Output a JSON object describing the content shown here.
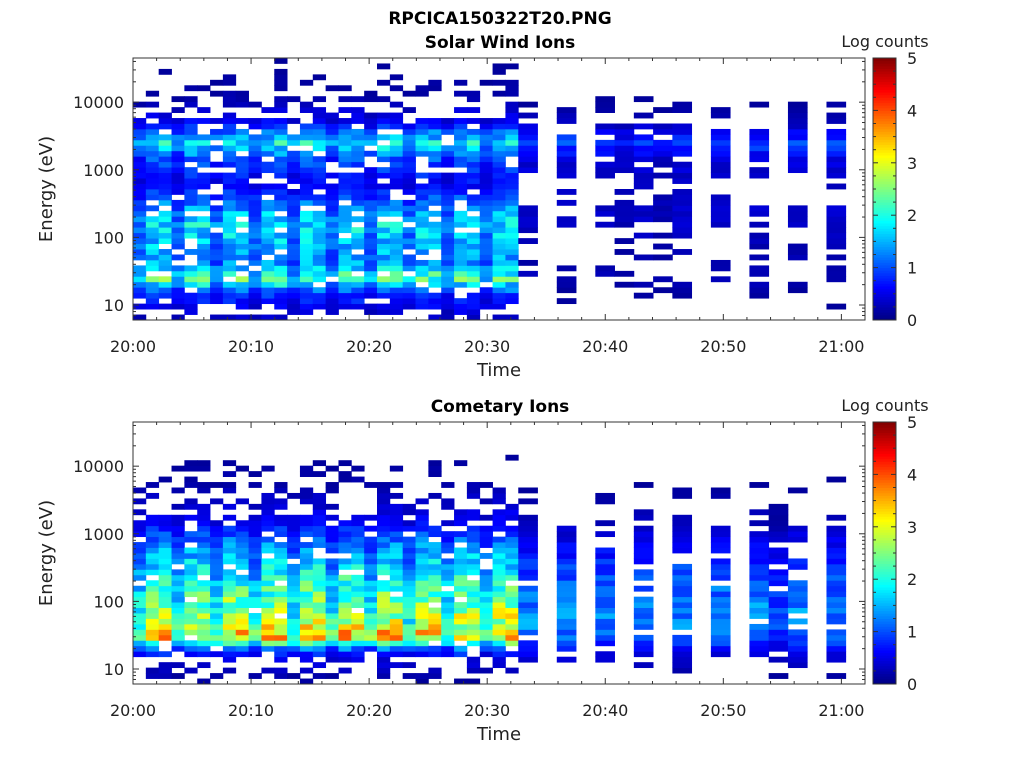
{
  "figure_title": "RPCICA150322T20.PNG",
  "chart_data": [
    {
      "type": "heatmap",
      "title": "Solar Wind Ions",
      "xlabel": "Time",
      "ylabel": "Energy (eV)",
      "x_ticks": [
        "20:00",
        "20:10",
        "20:20",
        "20:30",
        "20:40",
        "20:50",
        "21:00"
      ],
      "x_range": [
        "20:00",
        "21:02"
      ],
      "y_ticks": [
        10,
        100,
        1000,
        10000
      ],
      "y_scale": "log",
      "y_range": [
        6,
        45000
      ],
      "colorbar": {
        "label": "Log counts",
        "range": [
          0,
          5
        ],
        "ticks": [
          0,
          1,
          2,
          3,
          4,
          5
        ],
        "colormap": "jet"
      },
      "description_hint": "Sweeps every ~3.2 min; highest intensities (log counts ~2-3) at 20-300 eV and ~1-3 keV before 20:30; sparse low-level counts afterwards",
      "profiles": {
        "early": [
          [
            6,
            0.3
          ],
          [
            15,
            0.9
          ],
          [
            25,
            2.3
          ],
          [
            40,
            1.4
          ],
          [
            70,
            1.5
          ],
          [
            150,
            1.8
          ],
          [
            300,
            1.3
          ],
          [
            600,
            0.6
          ],
          [
            1500,
            1.1
          ],
          [
            2500,
            1.9
          ],
          [
            5000,
            0.6
          ],
          [
            12000,
            0.2
          ],
          [
            40000,
            0.1
          ]
        ],
        "late": [
          [
            6,
            0.1
          ],
          [
            15,
            0.2
          ],
          [
            25,
            0.4
          ],
          [
            40,
            0.3
          ],
          [
            70,
            0.35
          ],
          [
            150,
            0.5
          ],
          [
            300,
            0.5
          ],
          [
            600,
            0.4
          ],
          [
            1500,
            0.7
          ],
          [
            2500,
            1.4
          ],
          [
            5000,
            0.4
          ],
          [
            12000,
            0.15
          ],
          [
            40000,
            0.05
          ]
        ]
      }
    },
    {
      "type": "heatmap",
      "title": "Cometary Ions",
      "xlabel": "Time",
      "ylabel": "Energy (eV)",
      "x_ticks": [
        "20:00",
        "20:10",
        "20:20",
        "20:30",
        "20:40",
        "20:50",
        "21:00"
      ],
      "x_range": [
        "20:00",
        "21:02"
      ],
      "y_ticks": [
        10,
        100,
        1000,
        10000
      ],
      "y_scale": "log",
      "y_range": [
        6,
        45000
      ],
      "colorbar": {
        "label": "Log counts",
        "range": [
          0,
          5
        ],
        "ticks": [
          0,
          1,
          2,
          3,
          4,
          5
        ],
        "colormap": "jet"
      },
      "description_hint": "Peak intensity (log counts ~3-3.5) at 25-40 eV before 20:30; broadband 20 eV-1 keV emission of ~1-2 log counts; weaker after 20:30",
      "profiles": {
        "early": [
          [
            6,
            0.1
          ],
          [
            15,
            0.5
          ],
          [
            20,
            1.2
          ],
          [
            30,
            3.4
          ],
          [
            45,
            2.9
          ],
          [
            80,
            2.6
          ],
          [
            150,
            2.2
          ],
          [
            300,
            1.8
          ],
          [
            700,
            1.3
          ],
          [
            1500,
            0.6
          ],
          [
            3000,
            0.35
          ],
          [
            6000,
            0.2
          ],
          [
            40000,
            0.0
          ]
        ],
        "late": [
          [
            6,
            0.05
          ],
          [
            15,
            0.6
          ],
          [
            20,
            0.9
          ],
          [
            30,
            1.6
          ],
          [
            45,
            1.8
          ],
          [
            80,
            1.8
          ],
          [
            150,
            1.6
          ],
          [
            300,
            1.3
          ],
          [
            700,
            0.8
          ],
          [
            1500,
            0.4
          ],
          [
            3000,
            0.25
          ],
          [
            6000,
            0.15
          ],
          [
            40000,
            0.0
          ]
        ]
      }
    }
  ]
}
